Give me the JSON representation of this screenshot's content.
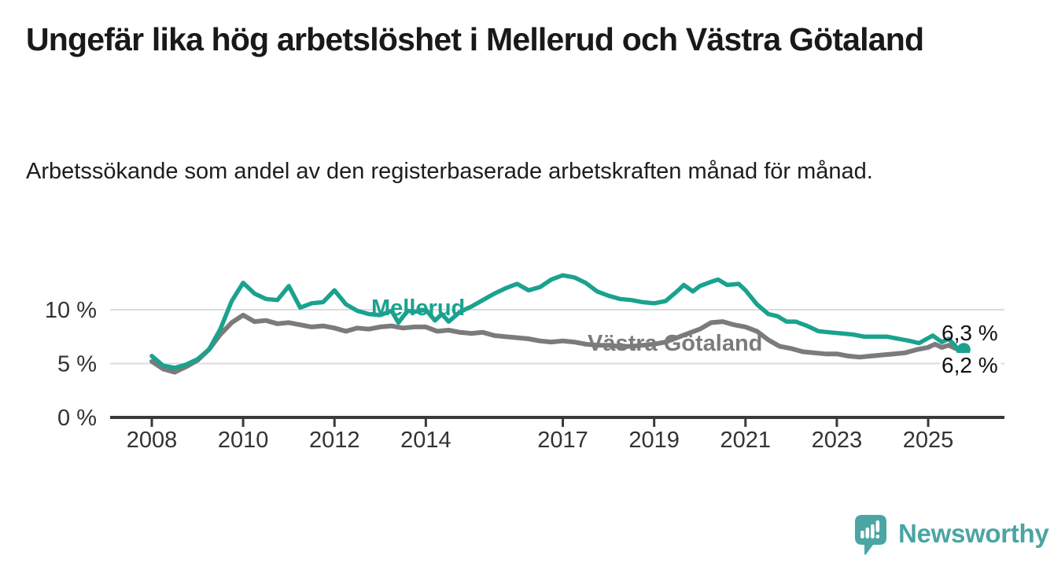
{
  "title": "Ungefär lika hög arbetslöshet i Mellerud och Västra Götaland",
  "subtitle": "Arbetssökande som andel av den registerbaserade arbetskraften månad för månad.",
  "chart_data": {
    "type": "line",
    "unit": "%",
    "grid": true,
    "grid_color": "#dcdcdc",
    "axis_color": "#3a3a3a",
    "tick_label_color": "#333333",
    "y_range": [
      0,
      14
    ],
    "x_range": [
      2008,
      2025.8
    ],
    "y_ticks": [
      {
        "value": 0,
        "label": "0 %"
      },
      {
        "value": 5,
        "label": "5 %"
      },
      {
        "value": 10,
        "label": "10 %"
      }
    ],
    "x_ticks": [
      "2008",
      "2010",
      "2012",
      "2014",
      "2017",
      "2019",
      "2021",
      "2023",
      "2025"
    ],
    "series": [
      {
        "id": "mellerud",
        "name": "Mellerud",
        "color": "#1aa28f",
        "width": 5.5,
        "end_label": "6,3 %",
        "last_value": 6.3,
        "points": [
          [
            2008.0,
            5.7
          ],
          [
            2008.25,
            4.8
          ],
          [
            2008.5,
            4.6
          ],
          [
            2008.75,
            4.9
          ],
          [
            2009.0,
            5.4
          ],
          [
            2009.25,
            6.3
          ],
          [
            2009.5,
            8.2
          ],
          [
            2009.75,
            10.8
          ],
          [
            2010.0,
            12.5
          ],
          [
            2010.25,
            11.5
          ],
          [
            2010.5,
            11.0
          ],
          [
            2010.75,
            10.9
          ],
          [
            2011.0,
            12.2
          ],
          [
            2011.25,
            10.2
          ],
          [
            2011.5,
            10.6
          ],
          [
            2011.75,
            10.7
          ],
          [
            2012.0,
            11.8
          ],
          [
            2012.25,
            10.5
          ],
          [
            2012.5,
            9.9
          ],
          [
            2012.75,
            9.6
          ],
          [
            2013.0,
            9.5
          ],
          [
            2013.25,
            9.9
          ],
          [
            2013.4,
            8.8
          ],
          [
            2013.6,
            9.9
          ],
          [
            2013.75,
            9.8
          ],
          [
            2014.0,
            10.0
          ],
          [
            2014.2,
            9.0
          ],
          [
            2014.35,
            9.6
          ],
          [
            2014.5,
            8.9
          ],
          [
            2014.75,
            9.8
          ],
          [
            2015.0,
            10.3
          ],
          [
            2015.25,
            10.9
          ],
          [
            2015.5,
            11.5
          ],
          [
            2015.75,
            12.0
          ],
          [
            2016.0,
            12.4
          ],
          [
            2016.25,
            11.8
          ],
          [
            2016.5,
            12.1
          ],
          [
            2016.75,
            12.8
          ],
          [
            2017.0,
            13.2
          ],
          [
            2017.25,
            13.0
          ],
          [
            2017.5,
            12.5
          ],
          [
            2017.75,
            11.7
          ],
          [
            2018.0,
            11.3
          ],
          [
            2018.25,
            11.0
          ],
          [
            2018.5,
            10.9
          ],
          [
            2018.75,
            10.7
          ],
          [
            2019.0,
            10.6
          ],
          [
            2019.25,
            10.8
          ],
          [
            2019.5,
            11.7
          ],
          [
            2019.65,
            12.3
          ],
          [
            2019.85,
            11.7
          ],
          [
            2020.0,
            12.2
          ],
          [
            2020.25,
            12.6
          ],
          [
            2020.4,
            12.8
          ],
          [
            2020.6,
            12.3
          ],
          [
            2020.85,
            12.4
          ],
          [
            2021.0,
            11.8
          ],
          [
            2021.25,
            10.5
          ],
          [
            2021.5,
            9.6
          ],
          [
            2021.7,
            9.4
          ],
          [
            2021.9,
            8.9
          ],
          [
            2022.1,
            8.9
          ],
          [
            2022.35,
            8.5
          ],
          [
            2022.6,
            8.0
          ],
          [
            2022.85,
            7.9
          ],
          [
            2023.1,
            7.8
          ],
          [
            2023.35,
            7.7
          ],
          [
            2023.6,
            7.5
          ],
          [
            2023.85,
            7.5
          ],
          [
            2024.1,
            7.5
          ],
          [
            2024.35,
            7.3
          ],
          [
            2024.6,
            7.1
          ],
          [
            2024.8,
            6.9
          ],
          [
            2025.1,
            7.6
          ],
          [
            2025.3,
            7.0
          ],
          [
            2025.45,
            7.3
          ],
          [
            2025.6,
            6.6
          ],
          [
            2025.7,
            5.9
          ],
          [
            2025.78,
            6.3
          ]
        ]
      },
      {
        "id": "vastra-gotaland",
        "name": "Västra Götaland",
        "color": "#7b7b7b",
        "width": 6,
        "end_label": "6,2 %",
        "last_value": 6.2,
        "points": [
          [
            2008.0,
            5.2
          ],
          [
            2008.25,
            4.5
          ],
          [
            2008.5,
            4.2
          ],
          [
            2008.75,
            4.7
          ],
          [
            2009.0,
            5.3
          ],
          [
            2009.25,
            6.3
          ],
          [
            2009.5,
            7.7
          ],
          [
            2009.75,
            8.8
          ],
          [
            2010.0,
            9.5
          ],
          [
            2010.25,
            8.9
          ],
          [
            2010.5,
            9.0
          ],
          [
            2010.75,
            8.7
          ],
          [
            2011.0,
            8.8
          ],
          [
            2011.25,
            8.6
          ],
          [
            2011.5,
            8.4
          ],
          [
            2011.75,
            8.5
          ],
          [
            2012.0,
            8.3
          ],
          [
            2012.25,
            8.0
          ],
          [
            2012.5,
            8.3
          ],
          [
            2012.75,
            8.2
          ],
          [
            2013.0,
            8.4
          ],
          [
            2013.25,
            8.5
          ],
          [
            2013.5,
            8.3
          ],
          [
            2013.75,
            8.4
          ],
          [
            2014.0,
            8.4
          ],
          [
            2014.25,
            8.0
          ],
          [
            2014.5,
            8.1
          ],
          [
            2014.75,
            7.9
          ],
          [
            2015.0,
            7.8
          ],
          [
            2015.25,
            7.9
          ],
          [
            2015.5,
            7.6
          ],
          [
            2015.75,
            7.5
          ],
          [
            2016.0,
            7.4
          ],
          [
            2016.25,
            7.3
          ],
          [
            2016.5,
            7.1
          ],
          [
            2016.75,
            7.0
          ],
          [
            2017.0,
            7.1
          ],
          [
            2017.25,
            7.0
          ],
          [
            2017.5,
            6.8
          ],
          [
            2017.75,
            6.7
          ],
          [
            2018.0,
            6.7
          ],
          [
            2018.25,
            6.6
          ],
          [
            2018.5,
            6.6
          ],
          [
            2018.75,
            6.7
          ],
          [
            2019.0,
            6.8
          ],
          [
            2019.25,
            7.0
          ],
          [
            2019.5,
            7.4
          ],
          [
            2019.75,
            7.8
          ],
          [
            2020.0,
            8.2
          ],
          [
            2020.25,
            8.8
          ],
          [
            2020.5,
            8.9
          ],
          [
            2020.75,
            8.6
          ],
          [
            2021.0,
            8.4
          ],
          [
            2021.25,
            8.0
          ],
          [
            2021.5,
            7.2
          ],
          [
            2021.75,
            6.6
          ],
          [
            2022.0,
            6.4
          ],
          [
            2022.25,
            6.1
          ],
          [
            2022.5,
            6.0
          ],
          [
            2022.75,
            5.9
          ],
          [
            2023.0,
            5.9
          ],
          [
            2023.25,
            5.7
          ],
          [
            2023.5,
            5.6
          ],
          [
            2023.75,
            5.7
          ],
          [
            2024.0,
            5.8
          ],
          [
            2024.25,
            5.9
          ],
          [
            2024.5,
            6.0
          ],
          [
            2024.75,
            6.3
          ],
          [
            2025.0,
            6.5
          ],
          [
            2025.15,
            6.8
          ],
          [
            2025.3,
            6.5
          ],
          [
            2025.45,
            6.7
          ],
          [
            2025.6,
            6.4
          ],
          [
            2025.78,
            6.2
          ]
        ]
      }
    ]
  },
  "branding": {
    "name": "Newsworthy",
    "color": "#4aa5a3"
  }
}
